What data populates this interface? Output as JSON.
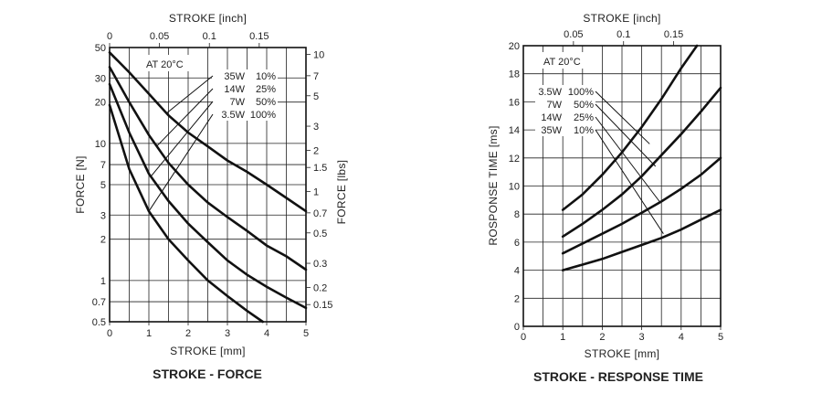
{
  "chart_data": [
    {
      "type": "line",
      "title": "STROKE - FORCE",
      "xlabel": "STROKE [mm]",
      "x2label": "STROKE [inch]",
      "ylabel": "FORCE [N]",
      "y2label": "FORCE [lbs]",
      "annotation": "AT 20°C",
      "yscale": "log",
      "xlim": [
        0,
        5
      ],
      "ylim": [
        0.5,
        50
      ],
      "x_ticks": [
        "0",
        "1",
        "2",
        "3",
        "4",
        "5"
      ],
      "x2_ticks": [
        "0",
        "0.05",
        "0.1",
        "0.15"
      ],
      "y_ticks": [
        "0.5",
        "0.7",
        "1",
        "2",
        "3",
        "5",
        "7",
        "10",
        "20",
        "30",
        "50"
      ],
      "y2_ticks": [
        "0.15",
        "0.2",
        "0.3",
        "0.5",
        "0.7",
        "1",
        "1.5",
        "2",
        "3",
        "5",
        "7",
        "10"
      ],
      "legend_labels": [
        {
          "power": "35W",
          "duty": "10%"
        },
        {
          "power": "14W",
          "duty": "25%"
        },
        {
          "power": "7W",
          "duty": "50%"
        },
        {
          "power": "3.5W",
          "duty": "100%"
        }
      ],
      "series": [
        {
          "power": "35W",
          "duty": "10%",
          "x": [
            0,
            0.5,
            1,
            1.5,
            2,
            2.5,
            3,
            3.5,
            4,
            4.5,
            5
          ],
          "y": [
            46,
            33,
            23,
            16,
            12,
            9.5,
            7.5,
            6.2,
            5,
            4,
            3.2
          ]
        },
        {
          "power": "14W",
          "duty": "25%",
          "x": [
            0,
            0.5,
            1,
            1.5,
            2,
            2.5,
            3,
            3.5,
            4,
            4.5,
            5
          ],
          "y": [
            36,
            20,
            11.5,
            7.2,
            5,
            3.7,
            2.9,
            2.3,
            1.8,
            1.5,
            1.2
          ]
        },
        {
          "power": "7W",
          "duty": "50%",
          "x": [
            0,
            0.5,
            1,
            1.5,
            2,
            2.5,
            3,
            3.5,
            4,
            4.5,
            5
          ],
          "y": [
            27,
            12,
            6,
            3.8,
            2.6,
            1.9,
            1.4,
            1.1,
            0.9,
            0.75,
            0.63
          ]
        },
        {
          "power": "3.5W",
          "duty": "100%",
          "x": [
            0,
            0.5,
            1,
            1.5,
            2,
            2.5,
            3,
            3.5,
            3.9
          ],
          "y": [
            19,
            6.5,
            3.2,
            2,
            1.4,
            1.0,
            0.77,
            0.6,
            0.5
          ]
        }
      ]
    },
    {
      "type": "line",
      "title": "STROKE - RESPONSE TIME",
      "xlabel": "STROKE [mm]",
      "x2label": "STROKE [inch]",
      "ylabel": "ROSPONSE TIME [ms]",
      "annotation": "AT 20°C",
      "xlim": [
        0,
        5
      ],
      "ylim": [
        0,
        20
      ],
      "x_ticks": [
        "0",
        "1",
        "2",
        "3",
        "4",
        "5"
      ],
      "x2_ticks": [
        "0.05",
        "0.1",
        "0.15"
      ],
      "y_ticks": [
        "0",
        "2",
        "4",
        "6",
        "8",
        "10",
        "12",
        "14",
        "16",
        "18",
        "20"
      ],
      "legend_labels": [
        {
          "power": "3.5W",
          "duty": "100%"
        },
        {
          "power": "7W",
          "duty": "50%"
        },
        {
          "power": "14W",
          "duty": "25%"
        },
        {
          "power": "35W",
          "duty": "10%"
        }
      ],
      "series": [
        {
          "power": "3.5W",
          "duty": "100%",
          "x": [
            1,
            1.5,
            2,
            2.5,
            3,
            3.5,
            4,
            4.4
          ],
          "y": [
            8.3,
            9.4,
            10.8,
            12.4,
            14.2,
            16.2,
            18.4,
            20
          ]
        },
        {
          "power": "7W",
          "duty": "50%",
          "x": [
            1,
            1.5,
            2,
            2.5,
            3,
            3.5,
            4,
            4.5,
            5
          ],
          "y": [
            6.4,
            7.3,
            8.3,
            9.4,
            10.7,
            12.2,
            13.7,
            15.3,
            17
          ]
        },
        {
          "power": "14W",
          "duty": "25%",
          "x": [
            1,
            1.5,
            2,
            2.5,
            3,
            3.5,
            4,
            4.5,
            5
          ],
          "y": [
            5.2,
            5.9,
            6.6,
            7.3,
            8.1,
            8.9,
            9.8,
            10.8,
            12
          ]
        },
        {
          "power": "35W",
          "duty": "10%",
          "x": [
            1,
            1.5,
            2,
            2.5,
            3,
            3.5,
            4,
            4.5,
            5
          ],
          "y": [
            4.0,
            4.4,
            4.8,
            5.3,
            5.8,
            6.3,
            6.9,
            7.6,
            8.3
          ]
        }
      ]
    }
  ]
}
